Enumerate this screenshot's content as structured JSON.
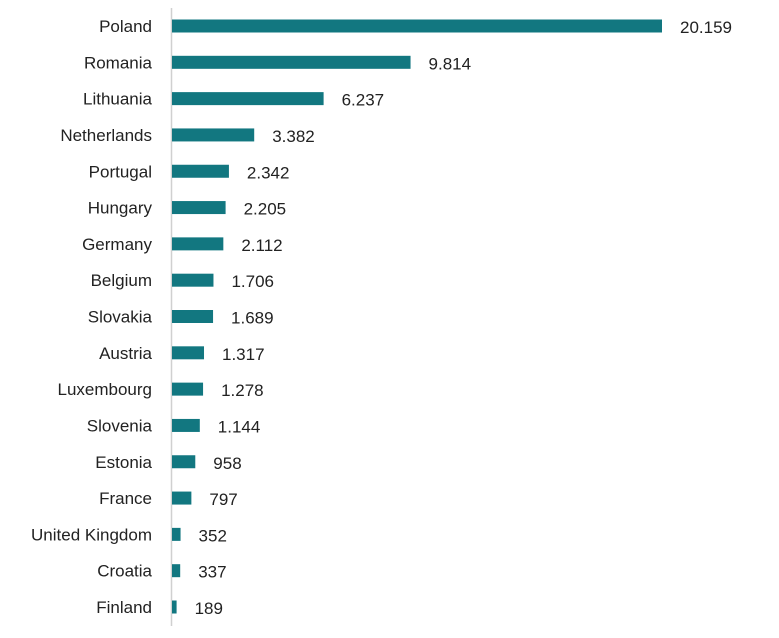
{
  "chart_data": {
    "type": "bar",
    "orientation": "horizontal",
    "title": "",
    "xlabel": "",
    "ylabel": "",
    "categories": [
      "Poland",
      "Romania",
      "Lithuania",
      "Netherlands",
      "Portugal",
      "Hungary",
      "Germany",
      "Belgium",
      "Slovakia",
      "Austria",
      "Luxembourg",
      "Slovenia",
      "Estonia",
      "France",
      "United Kingdom",
      "Croatia",
      "Finland"
    ],
    "values": [
      20159,
      9814,
      6237,
      3382,
      2342,
      2205,
      2112,
      1706,
      1689,
      1317,
      1278,
      1144,
      958,
      797,
      352,
      337,
      189
    ],
    "value_labels": [
      "20.159",
      "9.814",
      "6.237",
      "3.382",
      "2.342",
      "2.205",
      "2.112",
      "1.706",
      "1.689",
      "1.317",
      "1.278",
      "1.144",
      "958",
      "797",
      "352",
      "337",
      "189"
    ],
    "xlim": [
      0,
      20159
    ],
    "grid": false,
    "bar_color": "#127780"
  }
}
